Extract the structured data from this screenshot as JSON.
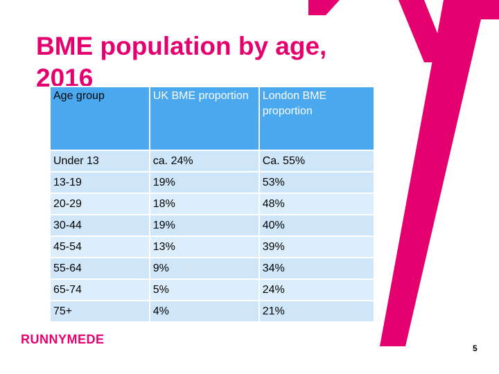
{
  "slide": {
    "title": "BME population by age, 2016",
    "page_number": "5",
    "logo_text": "RUNNYMEDE",
    "accent_color": "#e5006f",
    "table_header_color": "#4aa8ee"
  },
  "table": {
    "headers": [
      "Age group",
      "UK BME proportion",
      "London BME proportion"
    ],
    "rows": [
      [
        "Under 13",
        "ca. 24%",
        "Ca. 55%"
      ],
      [
        "13-19",
        "19%",
        "53%"
      ],
      [
        "20-29",
        "18%",
        "48%"
      ],
      [
        "30-44",
        "19%",
        "40%"
      ],
      [
        "45-54",
        "13%",
        "39%"
      ],
      [
        "55-64",
        "9%",
        "34%"
      ],
      [
        "65-74",
        "5%",
        "24%"
      ],
      [
        "75+",
        "4%",
        "21%"
      ]
    ]
  }
}
